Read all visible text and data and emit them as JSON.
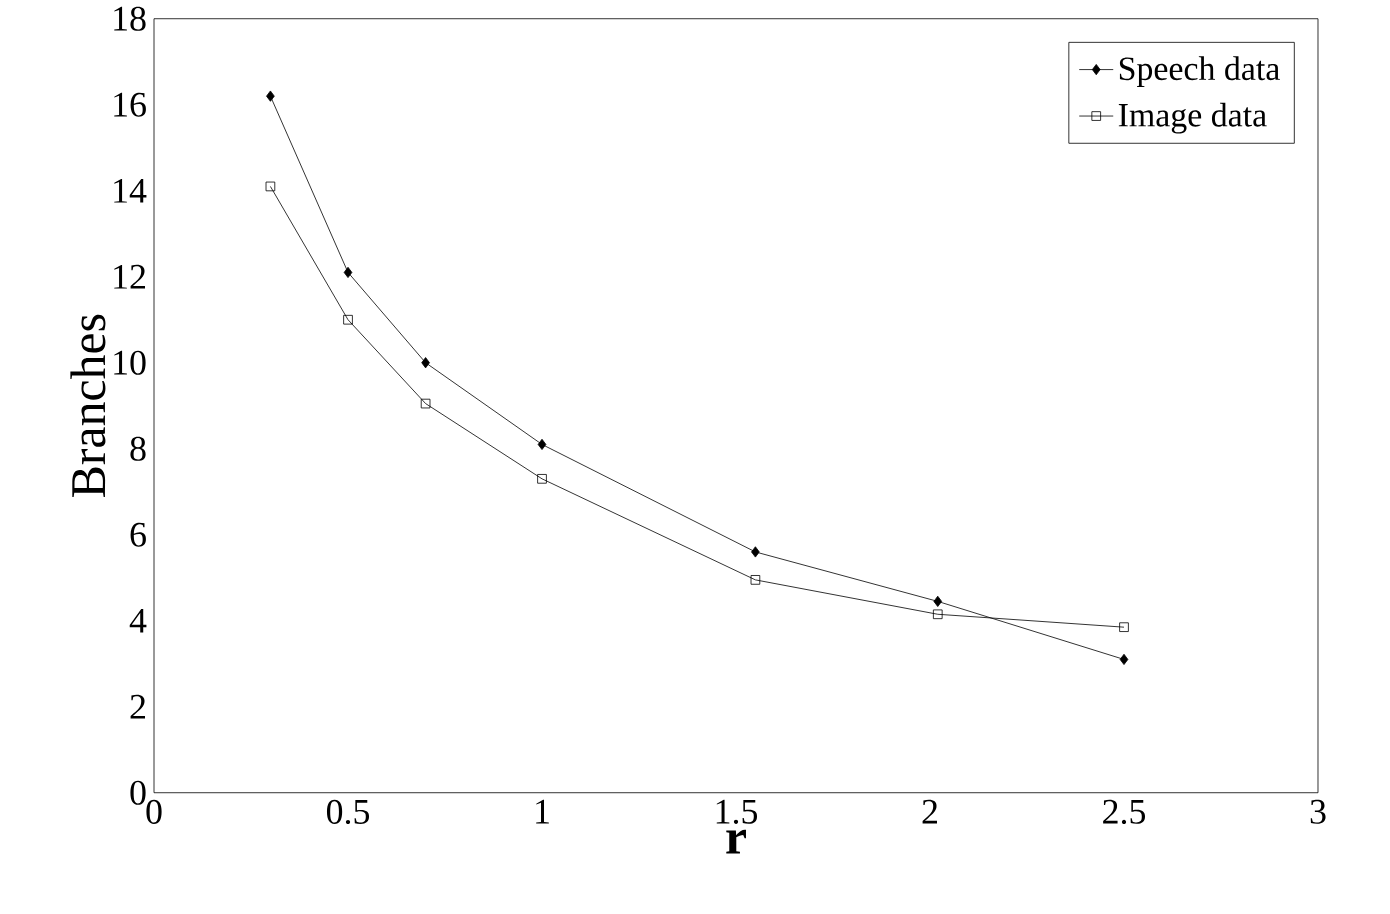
{
  "chart_data": {
    "type": "line",
    "xlabel": "**r**",
    "ylabel": "Branches",
    "xlim": [
      0,
      3
    ],
    "ylim": [
      0,
      18
    ],
    "xticks": [
      0,
      0.5,
      1,
      1.5,
      2,
      2.5,
      3
    ],
    "yticks": [
      0,
      2,
      4,
      6,
      8,
      10,
      12,
      14,
      16,
      18
    ],
    "grid": false,
    "legend": "top right",
    "line_style": "solid",
    "series": [
      {
        "name": "Speech data",
        "color": "#000000",
        "marker": "diamond",
        "x": [
          0.3,
          0.5,
          0.7,
          1.0,
          1.55,
          2.02,
          2.5
        ],
        "values": [
          16.2,
          12.1,
          10.0,
          8.1,
          5.6,
          4.45,
          3.1
        ]
      },
      {
        "name": "Image data",
        "color": "#000000",
        "marker": "square",
        "x": [
          0.3,
          0.5,
          0.7,
          1.0,
          1.55,
          2.02,
          2.5
        ],
        "values": [
          14.1,
          11.0,
          9.05,
          7.3,
          4.95,
          4.15,
          3.85
        ]
      }
    ]
  }
}
